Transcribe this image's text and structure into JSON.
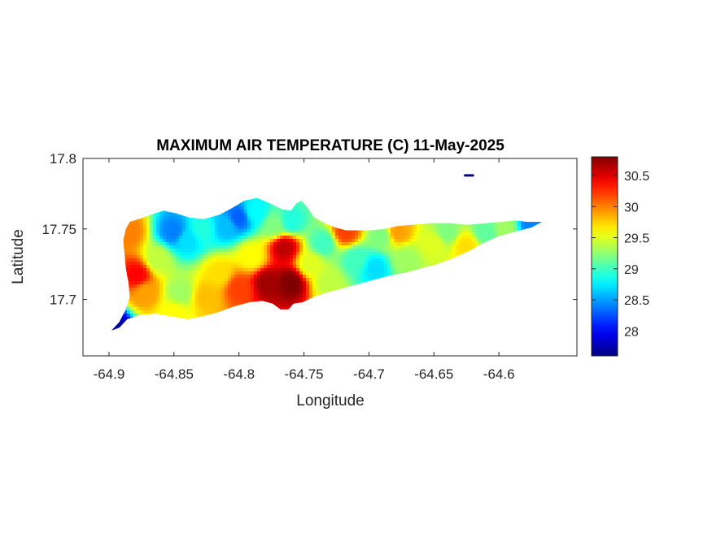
{
  "chart_data": {
    "type": "heatmap",
    "title": "MAXIMUM AIR TEMPERATURE (C) 11-May-2025",
    "xlabel": "Longitude",
    "ylabel": "Latitude",
    "xlim": [
      -64.92,
      -64.54
    ],
    "ylim": [
      17.66,
      17.8
    ],
    "xticks": [
      -64.9,
      -64.85,
      -64.8,
      -64.75,
      -64.7,
      -64.65,
      -64.6
    ],
    "xtick_labels": [
      "-64.9",
      "-64.85",
      "-64.8",
      "-64.75",
      "-64.7",
      "-64.65",
      "-64.6"
    ],
    "yticks": [
      17.7,
      17.75,
      17.8
    ],
    "ytick_labels": [
      "17.7",
      "17.75",
      "17.8"
    ],
    "colorbar": {
      "colormap": "jet",
      "clim": [
        27.6,
        30.8
      ],
      "ticks": [
        28,
        28.5,
        29,
        29.5,
        30,
        30.5
      ],
      "tick_labels": [
        "28",
        "28.5",
        "29",
        "29.5",
        "30",
        "30.5"
      ]
    },
    "grid": false,
    "island_outline": [
      [
        -64.898,
        17.678
      ],
      [
        -64.892,
        17.684
      ],
      [
        -64.887,
        17.693
      ],
      [
        -64.884,
        17.702
      ],
      [
        -64.885,
        17.712
      ],
      [
        -64.887,
        17.722
      ],
      [
        -64.888,
        17.732
      ],
      [
        -64.889,
        17.742
      ],
      [
        -64.887,
        17.75
      ],
      [
        -64.884,
        17.755
      ],
      [
        -64.877,
        17.757
      ],
      [
        -64.868,
        17.76
      ],
      [
        -64.858,
        17.763
      ],
      [
        -64.848,
        17.761
      ],
      [
        -64.838,
        17.758
      ],
      [
        -64.827,
        17.757
      ],
      [
        -64.815,
        17.76
      ],
      [
        -64.805,
        17.765
      ],
      [
        -64.796,
        17.77
      ],
      [
        -64.786,
        17.772
      ],
      [
        -64.776,
        17.768
      ],
      [
        -64.767,
        17.764
      ],
      [
        -64.76,
        17.763
      ],
      [
        -64.756,
        17.768
      ],
      [
        -64.752,
        17.77
      ],
      [
        -64.748,
        17.766
      ],
      [
        -64.742,
        17.758
      ],
      [
        -64.734,
        17.754
      ],
      [
        -64.726,
        17.751
      ],
      [
        -64.718,
        17.749
      ],
      [
        -64.708,
        17.749
      ],
      [
        -64.698,
        17.749
      ],
      [
        -64.688,
        17.75
      ],
      [
        -64.678,
        17.752
      ],
      [
        -64.666,
        17.753
      ],
      [
        -64.652,
        17.754
      ],
      [
        -64.638,
        17.754
      ],
      [
        -64.624,
        17.753
      ],
      [
        -64.61,
        17.754
      ],
      [
        -64.598,
        17.755
      ],
      [
        -64.588,
        17.756
      ],
      [
        -64.578,
        17.755
      ],
      [
        -64.567,
        17.755
      ],
      [
        -64.575,
        17.751
      ],
      [
        -64.588,
        17.748
      ],
      [
        -64.6,
        17.745
      ],
      [
        -64.612,
        17.74
      ],
      [
        -64.624,
        17.734
      ],
      [
        -64.636,
        17.729
      ],
      [
        -64.648,
        17.725
      ],
      [
        -64.66,
        17.722
      ],
      [
        -64.672,
        17.719
      ],
      [
        -64.684,
        17.717
      ],
      [
        -64.696,
        17.714
      ],
      [
        -64.708,
        17.711
      ],
      [
        -64.72,
        17.708
      ],
      [
        -64.732,
        17.705
      ],
      [
        -64.742,
        17.702
      ],
      [
        -64.751,
        17.698
      ],
      [
        -64.758,
        17.697
      ],
      [
        -64.762,
        17.693
      ],
      [
        -64.768,
        17.693
      ],
      [
        -64.774,
        17.697
      ],
      [
        -64.782,
        17.699
      ],
      [
        -64.792,
        17.698
      ],
      [
        -64.804,
        17.695
      ],
      [
        -64.816,
        17.691
      ],
      [
        -64.828,
        17.688
      ],
      [
        -64.84,
        17.686
      ],
      [
        -64.852,
        17.688
      ],
      [
        -64.864,
        17.69
      ],
      [
        -64.876,
        17.689
      ],
      [
        -64.886,
        17.686
      ],
      [
        -64.892,
        17.68
      ]
    ],
    "islet": [
      [
        -64.626,
        17.788
      ],
      [
        -64.62,
        17.788
      ]
    ],
    "field_points": [
      {
        "x": -64.885,
        "y": 17.748,
        "v": 30.0
      },
      {
        "x": -64.878,
        "y": 17.717,
        "v": 30.4
      },
      {
        "x": -64.872,
        "y": 17.705,
        "v": 29.9
      },
      {
        "x": -64.862,
        "y": 17.728,
        "v": 29.4
      },
      {
        "x": -64.85,
        "y": 17.748,
        "v": 28.4
      },
      {
        "x": -64.84,
        "y": 17.742,
        "v": 28.7
      },
      {
        "x": -64.828,
        "y": 17.75,
        "v": 28.9
      },
      {
        "x": -64.81,
        "y": 17.752,
        "v": 28.6
      },
      {
        "x": -64.8,
        "y": 17.758,
        "v": 28.3
      },
      {
        "x": -64.788,
        "y": 17.762,
        "v": 28.8
      },
      {
        "x": -64.772,
        "y": 17.752,
        "v": 29.2
      },
      {
        "x": -64.76,
        "y": 17.755,
        "v": 28.9
      },
      {
        "x": -64.845,
        "y": 17.705,
        "v": 29.3
      },
      {
        "x": -64.825,
        "y": 17.702,
        "v": 29.8
      },
      {
        "x": -64.815,
        "y": 17.718,
        "v": 29.7
      },
      {
        "x": -64.8,
        "y": 17.708,
        "v": 30.2
      },
      {
        "x": -64.79,
        "y": 17.73,
        "v": 29.6
      },
      {
        "x": -64.778,
        "y": 17.712,
        "v": 30.7
      },
      {
        "x": -64.765,
        "y": 17.737,
        "v": 30.6
      },
      {
        "x": -64.76,
        "y": 17.712,
        "v": 30.8
      },
      {
        "x": -64.745,
        "y": 17.725,
        "v": 29.5
      },
      {
        "x": -64.735,
        "y": 17.74,
        "v": 29.0
      },
      {
        "x": -64.73,
        "y": 17.712,
        "v": 29.4
      },
      {
        "x": -64.718,
        "y": 17.748,
        "v": 30.2
      },
      {
        "x": -64.71,
        "y": 17.728,
        "v": 29.0
      },
      {
        "x": -64.695,
        "y": 17.722,
        "v": 28.7
      },
      {
        "x": -64.69,
        "y": 17.745,
        "v": 29.2
      },
      {
        "x": -64.678,
        "y": 17.748,
        "v": 29.9
      },
      {
        "x": -64.672,
        "y": 17.728,
        "v": 29.3
      },
      {
        "x": -64.65,
        "y": 17.74,
        "v": 29.5
      },
      {
        "x": -64.64,
        "y": 17.748,
        "v": 29.2
      },
      {
        "x": -64.625,
        "y": 17.738,
        "v": 29.7
      },
      {
        "x": -64.61,
        "y": 17.748,
        "v": 29.1
      },
      {
        "x": -64.595,
        "y": 17.751,
        "v": 29.3
      },
      {
        "x": -64.575,
        "y": 17.754,
        "v": 28.4
      },
      {
        "x": -64.897,
        "y": 17.68,
        "v": 27.7
      },
      {
        "x": -64.85,
        "y": 17.69,
        "v": 29.6
      },
      {
        "x": -64.623,
        "y": 17.788,
        "v": 27.6
      }
    ]
  }
}
